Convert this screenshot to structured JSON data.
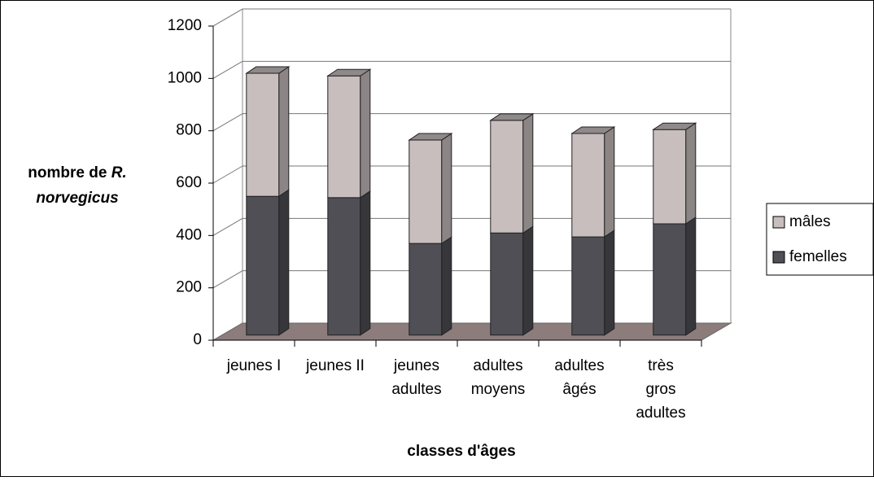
{
  "chart_data": {
    "type": "bar3d_stacked",
    "x_label": "classes d'âges",
    "y_label_lines": [
      "nombre de",
      "R.",
      "norvegicus"
    ],
    "categories": [
      [
        "jeunes I"
      ],
      [
        "jeunes II"
      ],
      [
        "jeunes",
        "adultes"
      ],
      [
        "adultes",
        "moyens"
      ],
      [
        "adultes",
        "âgés"
      ],
      [
        "très",
        "gros",
        "adultes"
      ]
    ],
    "series": [
      {
        "name": "femelles",
        "color": "#4f4f55",
        "values": [
          530,
          525,
          350,
          390,
          375,
          425
        ]
      },
      {
        "name": "mâles",
        "color": "#c8bebe",
        "values": [
          470,
          465,
          395,
          430,
          395,
          360
        ]
      }
    ],
    "ylim": [
      0,
      1200
    ],
    "yticks": [
      0,
      200,
      400,
      600,
      800,
      1000,
      1200
    ],
    "grid": true,
    "legend": "right"
  }
}
